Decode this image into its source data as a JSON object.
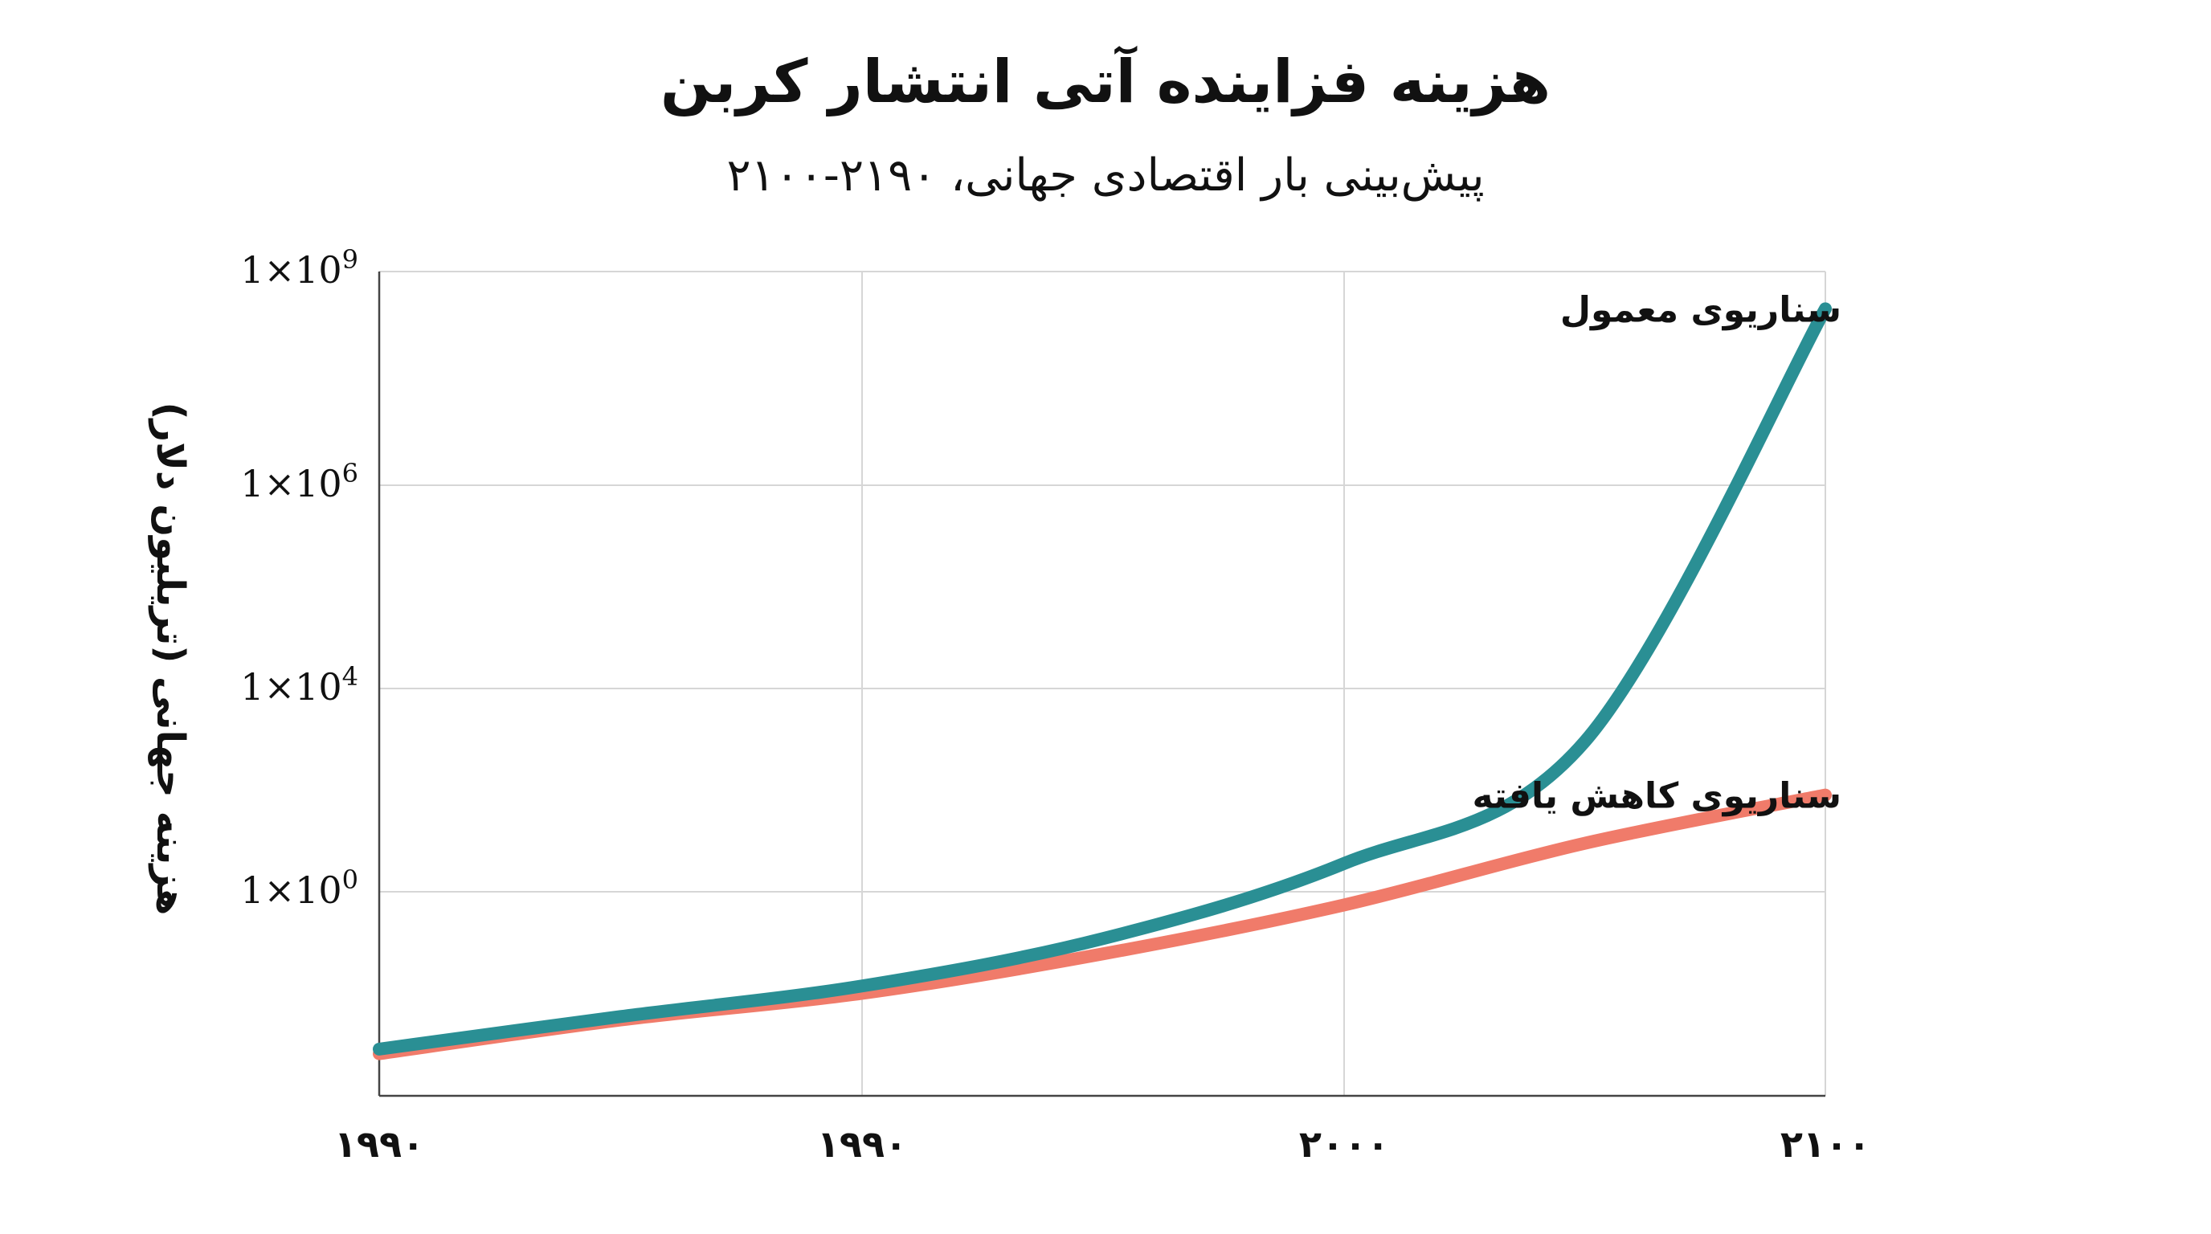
{
  "chart_data": {
    "type": "line",
    "title": "هزینه فزاینده آتی انتشار کربن",
    "subtitle": "پیش‌بینی بار اقتصادی جهانی، ۲۱۹۰-۲۱۰۰",
    "ylabel": "هزینه جهانی (تریلیون دلار)",
    "xlabel": "",
    "y_scale": "log",
    "x_tick_labels": [
      "۱۹۹۰",
      "۱۹۹۰",
      "۲۰۰۰",
      "۲۱۰۰"
    ],
    "y_ticks": [
      {
        "value": 1,
        "base": "1×10",
        "exp": "0"
      },
      {
        "value": 10000,
        "base": "1×10",
        "exp": "4"
      },
      {
        "value": 1000000,
        "base": "1×10",
        "exp": "6"
      },
      {
        "value": 1000000000,
        "base": "1×10",
        "exp": "9"
      }
    ],
    "x_positions": [
      0,
      1,
      2,
      3
    ],
    "grid": true,
    "series": [
      {
        "name": "سناریوی معمول",
        "color": "#2a8f94",
        "points": [
          [
            0,
            0.0008
          ],
          [
            0.5,
            0.0035
          ],
          [
            1,
            0.014
          ],
          [
            1.5,
            0.12
          ],
          [
            2,
            3.6
          ],
          [
            2.5,
            900
          ],
          [
            3,
            300000000
          ]
        ]
      },
      {
        "name": "سناریوی کاهش یافته",
        "color": "#f07b6a",
        "points": [
          [
            0,
            0.00065
          ],
          [
            0.5,
            0.003
          ],
          [
            1,
            0.01
          ],
          [
            1.5,
            0.06
          ],
          [
            2,
            0.55
          ],
          [
            2.5,
            9
          ],
          [
            3,
            80
          ]
        ]
      }
    ]
  }
}
